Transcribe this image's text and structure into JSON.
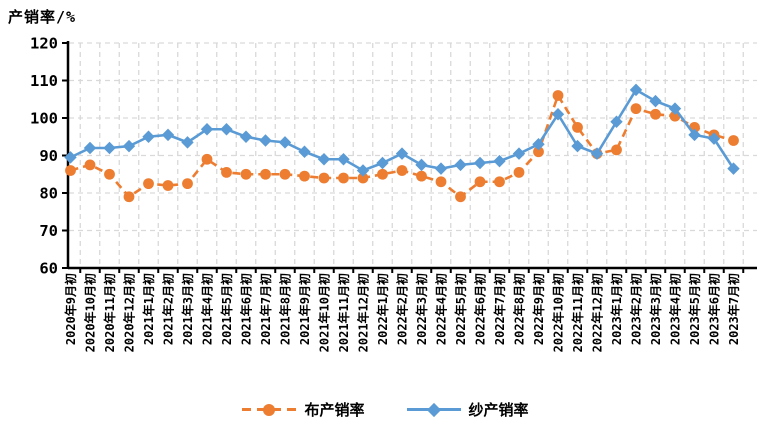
{
  "title": "产销率/%",
  "colors": {
    "cloth_series": "#ED7D31",
    "yarn_series": "#5B9BD5",
    "gridline": "#D9D9D9",
    "axis": "#000000"
  },
  "chart_data": {
    "type": "line",
    "title": "产销率/%",
    "ylabel": "产销率/%",
    "xlabel": "",
    "ylim": [
      60,
      120
    ],
    "ytick_step": 10,
    "grid": true,
    "legend_position": "bottom",
    "categories": [
      "2020年9月初",
      "2020年10月初",
      "2020年11月初",
      "2020年12月初",
      "2021年1月初",
      "2021年2月初",
      "2021年3月初",
      "2021年4月初",
      "2021年5月初",
      "2021年6月初",
      "2021年7月初",
      "2021年8月初",
      "2021年9月初",
      "2021年10月初",
      "2021年11月初",
      "2021年12月初",
      "2022年1月初",
      "2022年2月初",
      "2022年3月初",
      "2022年4月初",
      "2022年5月初",
      "2022年6月初",
      "2022年7月初",
      "2022年8月初",
      "2022年9月初",
      "2022年10月初",
      "2022年11月初",
      "2022年12月初",
      "2023年1月初",
      "2023年2月初",
      "2023年3月初",
      "2023年4月初",
      "2023年5月初",
      "2023年6月初",
      "2023年7月初"
    ],
    "series": [
      {
        "name": "布产销率",
        "color": "#ED7D31",
        "line_style": "dashed",
        "marker": "circle",
        "values": [
          86,
          87.5,
          85,
          79,
          82.5,
          82,
          82.5,
          89,
          85.5,
          85,
          85,
          85,
          84.5,
          84,
          84,
          84,
          85,
          86,
          84.5,
          83,
          79,
          83,
          83,
          85.5,
          91,
          106,
          97.5,
          90.5,
          91.5,
          102.5,
          101,
          100.5,
          97.5,
          95.5,
          94
        ]
      },
      {
        "name": "纱产销率",
        "color": "#5B9BD5",
        "line_style": "solid",
        "marker": "diamond",
        "values": [
          89.5,
          92,
          92,
          92.5,
          95,
          95.5,
          93.5,
          97,
          97,
          95,
          94,
          93.5,
          91,
          89,
          89,
          86,
          88,
          90.5,
          87.5,
          86.5,
          87.5,
          88,
          88.5,
          90.5,
          93,
          101,
          92.5,
          90.5,
          99,
          107.5,
          104.5,
          102.5,
          95.5,
          94.5,
          86.5
        ]
      }
    ]
  }
}
